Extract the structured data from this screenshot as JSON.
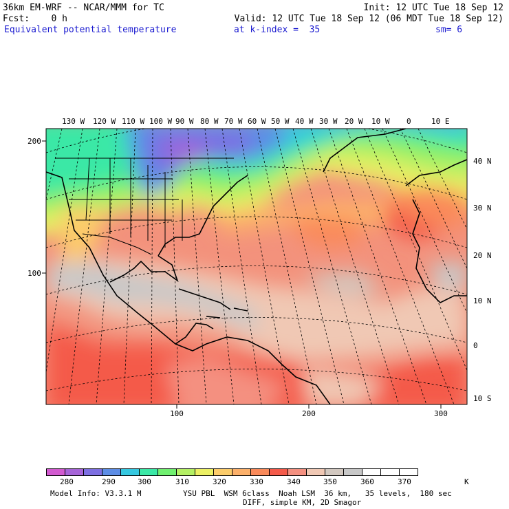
{
  "header": {
    "title_left": "36km EM-WRF -- NCAR/MMM for TC",
    "init": "Init: 12 UTC Tue 18 Sep 12",
    "fcst": "Fcst:    0 h",
    "valid": "Valid: 12 UTC Tue 18 Sep 12 (06 MDT Tue 18 Sep 12)",
    "field": "Equivalent potential temperature",
    "k_index": "at k-index =  35",
    "sm": "sm= 6"
  },
  "map": {
    "lon_labels": [
      "130 W",
      "120 W",
      "110 W",
      "100 W",
      "90 W",
      "80 W",
      "70 W",
      "60 W",
      "50 W",
      "40 W",
      "30 W",
      "20 W",
      "10 W",
      "0",
      "10 E"
    ],
    "lat_labels": [
      "40 N",
      "30 N",
      "20 N",
      "10 N",
      "0",
      "10 S"
    ],
    "grid_y_labels": [
      "200",
      "100"
    ],
    "grid_x_labels": [
      "100",
      "200",
      "300"
    ]
  },
  "colorbar": {
    "colors": [
      "#d25ad0",
      "#a664d8",
      "#7d6fe2",
      "#5c8de6",
      "#35c8e0",
      "#3ae8a6",
      "#70f070",
      "#b4f064",
      "#ecf064",
      "#fccc6a",
      "#fcb06a",
      "#fa8a5a",
      "#f45a4a",
      "#f49080",
      "#f0c8b4",
      "#d2c8c0",
      "#c8c8c8",
      "#ffffff",
      "#ffffff",
      "#ffffff"
    ],
    "tick_labels": [
      "280",
      "290",
      "300",
      "310",
      "320",
      "330",
      "340",
      "350",
      "360",
      "370"
    ],
    "unit": "K"
  },
  "footer": {
    "model_info": "Model Info: V3.3.1 M",
    "physics": "YSU PBL  WSM 6class  Noah LSM  36 km,   35 levels,  180 sec",
    "diff": "DIFF, simple KM, 2D Smagor"
  }
}
